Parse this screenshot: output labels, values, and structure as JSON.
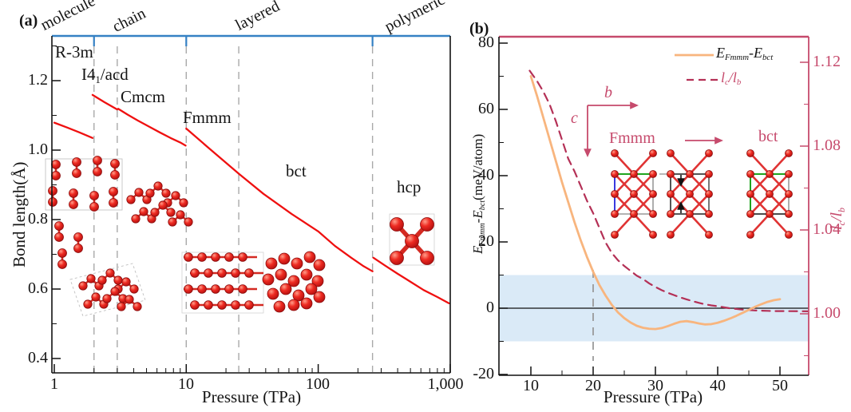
{
  "panel_labels": {
    "a": "(a)",
    "b": "(b)"
  },
  "chart_data": [
    {
      "panel": "a",
      "type": "line",
      "xlabel": "Pressure (TPa)",
      "ylabel": "Bond length(Å)",
      "x_scale": "log",
      "xlim": [
        0.95,
        1000
      ],
      "ylim": [
        0.355,
        1.33
      ],
      "x_ticks": [
        1,
        10,
        100,
        1000
      ],
      "x_tick_labels": [
        "1",
        "10",
        "100",
        "1,000"
      ],
      "y_ticks": [
        0.4,
        0.6,
        0.8,
        1.0,
        1.2
      ],
      "y_tick_labels": [
        "1.2",
        "1.0",
        "0.8",
        "0.6",
        "0.4"
      ],
      "y_minor_ticks": [
        0.5,
        0.7,
        0.9,
        1.1,
        1.3
      ],
      "grid": false,
      "region_labels": [
        "molecule",
        "chain",
        "layered",
        "polymeric"
      ],
      "group_boundaries_tpa": [
        2,
        10,
        258
      ],
      "phase_boundaries_tpa": [
        2,
        3,
        10,
        25,
        258
      ],
      "phases": [
        {
          "label": "R-3m"
        },
        {
          "label_pre": "I4",
          "label_sub": "1",
          "label_post": "/acd"
        },
        {
          "label": "Cmcm"
        },
        {
          "label": "Fmmm"
        },
        {
          "label": "bct"
        },
        {
          "label": "hcp"
        }
      ],
      "line_color": "#ef1010",
      "series": [
        {
          "name": "R-3m",
          "points": [
            [
              1.0,
              1.079
            ],
            [
              1.25,
              1.065
            ],
            [
              1.55,
              1.051
            ],
            [
              1.95,
              1.035
            ]
          ]
        },
        {
          "name": "I41/acd",
          "points": [
            [
              1.95,
              1.159
            ],
            [
              2.4,
              1.138
            ],
            [
              3.0,
              1.117
            ]
          ]
        },
        {
          "name": "Cmcm",
          "points": [
            [
              3.05,
              1.119
            ],
            [
              3.6,
              1.102
            ],
            [
              4.3,
              1.085
            ],
            [
              5.2,
              1.068
            ],
            [
              6.3,
              1.051
            ],
            [
              7.6,
              1.035
            ],
            [
              9.0,
              1.022
            ],
            [
              9.9,
              1.013
            ]
          ]
        },
        {
          "name": "Fmmm-bct",
          "points": [
            [
              10,
              1.062
            ],
            [
              14.5,
              1.009
            ],
            [
              25.2,
              0.931
            ],
            [
              38.5,
              0.874
            ],
            [
              63,
              0.816
            ],
            [
              100,
              0.766
            ],
            [
              134,
              0.724
            ],
            [
              178,
              0.69
            ],
            [
              218,
              0.667
            ],
            [
              258,
              0.651
            ]
          ]
        },
        {
          "name": "hcp",
          "points": [
            [
              262,
              0.69
            ],
            [
              320,
              0.668
            ],
            [
              400,
              0.644
            ],
            [
              500,
              0.621
            ],
            [
              630,
              0.597
            ],
            [
              800,
              0.577
            ],
            [
              980,
              0.559
            ]
          ]
        }
      ]
    },
    {
      "panel": "b",
      "type": "line",
      "xlabel": "Pressure (TPa)",
      "ylabel_left": {
        "pre": "E",
        "sub1": "Fmmm",
        "mid": "-E",
        "sub2": "bct",
        "unit": "(meV/atom)"
      },
      "ylabel_right": {
        "pre": "l",
        "sub1": "c",
        "mid": "/l",
        "sub2": "b"
      },
      "xlim": [
        4.9,
        54.6
      ],
      "ylim_left": [
        -21,
        82
      ],
      "ylim_right": [
        0.967,
        1.132
      ],
      "x_ticks": [
        10,
        20,
        30,
        40,
        50
      ],
      "x_tick_labels": [
        "10",
        "20",
        "30",
        "40",
        "50"
      ],
      "left_tick_labels": [
        "80",
        "60",
        "40",
        "20",
        "0",
        "-20"
      ],
      "left_ticks": [
        80,
        60,
        40,
        20,
        0,
        -20
      ],
      "right_tick_labels": [
        "1.12",
        "1.08",
        "1.04",
        "1.00"
      ],
      "right_ticks": [
        1.12,
        1.08,
        1.04,
        1.0
      ],
      "shaded_band_left_units": [
        -10,
        10
      ],
      "band_color": "#daeaf7",
      "dashed_guide_x_tpa": 20,
      "zero_line_left_units": 0,
      "legend": [
        {
          "pre": "E",
          "sub1": "Fmmm",
          "mid": "-E",
          "sub2": "bct"
        },
        {
          "pre": "l",
          "sub1": "c",
          "mid": "/l",
          "sub2": "b"
        }
      ],
      "series": [
        {
          "name": "E_Fmmm - E_bct",
          "axis": "left",
          "style": "solid",
          "color": "#f8b57e",
          "points": [
            [
              10,
              70
            ],
            [
              11,
              64
            ],
            [
              12,
              57.5
            ],
            [
              13,
              51
            ],
            [
              14,
              44.5
            ],
            [
              15,
              38
            ],
            [
              16,
              32
            ],
            [
              17,
              26
            ],
            [
              18,
              20.5
            ],
            [
              19,
              15.5
            ],
            [
              20,
              11
            ],
            [
              21,
              7
            ],
            [
              22,
              3.8
            ],
            [
              23,
              1
            ],
            [
              24,
              -1.3
            ],
            [
              25,
              -3
            ],
            [
              26,
              -4.3
            ],
            [
              27,
              -5.3
            ],
            [
              28,
              -5.9
            ],
            [
              29,
              -6.2
            ],
            [
              30,
              -6.3
            ],
            [
              31,
              -6
            ],
            [
              32,
              -5.4
            ],
            [
              33,
              -4.7
            ],
            [
              34,
              -4.1
            ],
            [
              35,
              -3.9
            ],
            [
              36,
              -4.2
            ],
            [
              37,
              -4.6
            ],
            [
              38,
              -4.9
            ],
            [
              39,
              -4.8
            ],
            [
              40,
              -4.4
            ],
            [
              41,
              -3.8
            ],
            [
              42,
              -3.1
            ],
            [
              43,
              -2.3
            ],
            [
              44,
              -1.4
            ],
            [
              45,
              -0.5
            ],
            [
              46,
              0.4
            ],
            [
              47,
              1.2
            ],
            [
              48,
              1.9
            ],
            [
              49,
              2.4
            ],
            [
              50,
              2.7
            ]
          ]
        },
        {
          "name": "lc/lb",
          "axis": "right",
          "style": "dashed",
          "color": "#b43056",
          "points": [
            [
              9.8,
              1.116
            ],
            [
              11,
              1.111
            ],
            [
              12,
              1.106
            ],
            [
              13,
              1.1
            ],
            [
              14,
              1.092
            ],
            [
              15,
              1.083
            ],
            [
              16,
              1.074
            ],
            [
              17,
              1.068
            ],
            [
              18,
              1.061
            ],
            [
              19,
              1.054
            ],
            [
              20,
              1.048
            ],
            [
              21,
              1.041
            ],
            [
              22,
              1.034
            ],
            [
              23,
              1.029
            ],
            [
              24,
              1.0255
            ],
            [
              25,
              1.0228
            ],
            [
              26,
              1.0205
            ],
            [
              27,
              1.0182
            ],
            [
              28,
              1.0166
            ],
            [
              29,
              1.0145
            ],
            [
              30,
              1.0128
            ],
            [
              31,
              1.0113
            ],
            [
              32,
              1.01
            ],
            [
              33,
              1.0089
            ],
            [
              34,
              1.0078
            ],
            [
              35,
              1.0069
            ],
            [
              36,
              1.006
            ],
            [
              37,
              1.0052
            ],
            [
              38,
              1.0045
            ],
            [
              39,
              1.004
            ],
            [
              40,
              1.0036
            ],
            [
              41,
              1.0031
            ],
            [
              42,
              1.0026
            ],
            [
              43,
              1.0023
            ],
            [
              44,
              1.002
            ],
            [
              45,
              1.0018
            ],
            [
              46,
              1.0016
            ],
            [
              47,
              1.0015
            ],
            [
              48,
              1.0014
            ],
            [
              49,
              1.0013
            ],
            [
              50,
              1.0013
            ],
            [
              54.6,
              1.0012
            ]
          ]
        }
      ],
      "inset": {
        "axis_b": "b",
        "axis_c": "c",
        "labels": [
          "Fmmm",
          "bct"
        ]
      }
    }
  ]
}
